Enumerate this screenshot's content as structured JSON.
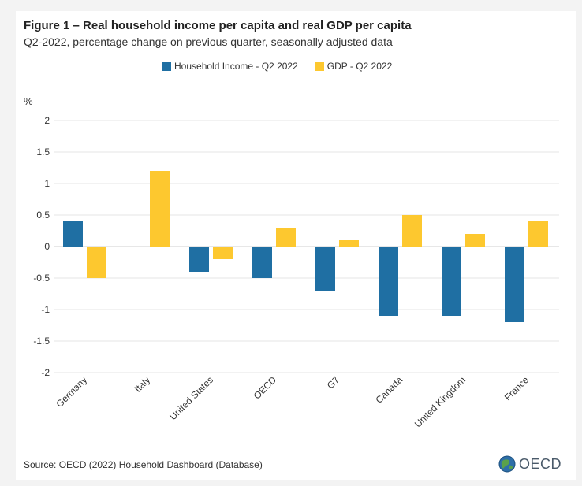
{
  "header": {
    "title": "Figure 1 – Real household income per capita and real GDP per capita",
    "subtitle": "Q2-2022, percentage change on previous quarter, seasonally adjusted data"
  },
  "footer": {
    "source_prefix": "Source: ",
    "source_link": "OECD (2022) Household Dashboard (Database)",
    "logo_text": "OECD"
  },
  "chart_data": {
    "type": "bar",
    "categories": [
      "Germany",
      "Italy",
      "United States",
      "OECD",
      "G7",
      "Canada",
      "United Kingdom",
      "France"
    ],
    "series": [
      {
        "name": "Household Income - Q2 2022",
        "color": "#1f6fa3",
        "values": [
          0.4,
          null,
          -0.4,
          -0.5,
          -0.7,
          -1.1,
          -1.1,
          -1.2
        ]
      },
      {
        "name": "GDP - Q2 2022",
        "color": "#fdc82f",
        "values": [
          -0.5,
          1.2,
          -0.2,
          0.3,
          0.1,
          0.5,
          0.2,
          0.4
        ]
      }
    ],
    "ylabel": "%",
    "ylim": [
      -2,
      2
    ],
    "yticks": [
      2,
      1.5,
      1,
      0.5,
      0,
      -0.5,
      -1,
      -1.5,
      -2
    ],
    "ytick_labels": [
      "2",
      "1.5",
      "1",
      "0.5",
      "0",
      "-0.5",
      "-1",
      "-1.5",
      "-2"
    ],
    "grid": true,
    "legend_position": "top-center"
  }
}
